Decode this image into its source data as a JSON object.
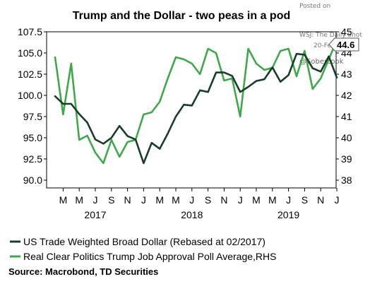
{
  "chart_data": {
    "type": "line",
    "title": "Trump and the Dollar - two peas in a pod",
    "x_tick_labels": [
      "M",
      "M",
      "J",
      "S",
      "N",
      "J",
      "M",
      "M",
      "J",
      "S",
      "N",
      "J",
      "M",
      "M",
      "J",
      "S",
      "N",
      "J"
    ],
    "year_labels": [
      "2017",
      "2018",
      "2019"
    ],
    "left_ticks": [
      "107.5",
      "105.0",
      "102.5",
      "100.0",
      "97.5",
      "95.0",
      "92.5",
      "90.0"
    ],
    "right_ticks": [
      "45",
      "44",
      "43",
      "42",
      "41",
      "40",
      "39",
      "38"
    ],
    "ylim_left": [
      90.0,
      107.5
    ],
    "ylim_right": [
      38,
      45
    ],
    "series": [
      {
        "name": "US Trade Weighted Broad Dollar (Rebased at 02/2017)",
        "axis": "left",
        "color": "#1a3d2b",
        "x": [
          "2017-02",
          "2017-03",
          "2017-04",
          "2017-05",
          "2017-06",
          "2017-07",
          "2017-08",
          "2017-09",
          "2017-10",
          "2017-11",
          "2017-12",
          "2018-01",
          "2018-02",
          "2018-03",
          "2018-04",
          "2018-05",
          "2018-06",
          "2018-07",
          "2018-08",
          "2018-09",
          "2018-10",
          "2018-11",
          "2018-12",
          "2019-01",
          "2019-02",
          "2019-03",
          "2019-04",
          "2019-05",
          "2019-06",
          "2019-07",
          "2019-08",
          "2019-09",
          "2019-10",
          "2019-11",
          "2019-12",
          "2020-01"
        ],
        "values": [
          99.9,
          99.0,
          99.0,
          97.8,
          96.8,
          94.8,
          94.3,
          95.0,
          96.4,
          95.2,
          94.8,
          92.0,
          94.4,
          93.7,
          95.5,
          97.5,
          98.9,
          98.8,
          100.6,
          100.4,
          102.7,
          102.7,
          102.3,
          100.4,
          101.0,
          101.7,
          101.9,
          103.3,
          101.6,
          102.4,
          104.9,
          104.8,
          103.2,
          102.8,
          104.6,
          102.1
        ]
      },
      {
        "name": "Real Clear Politics Trump Job Approval Poll Average,RHS",
        "axis": "right",
        "color": "#3fa84a",
        "x": [
          "2017-02",
          "2017-03",
          "2017-04",
          "2017-05",
          "2017-06",
          "2017-07",
          "2017-08",
          "2017-09",
          "2017-10",
          "2017-11",
          "2017-12",
          "2018-01",
          "2018-02",
          "2018-03",
          "2018-04",
          "2018-05",
          "2018-06",
          "2018-07",
          "2018-08",
          "2018-09",
          "2018-10",
          "2018-11",
          "2018-12",
          "2019-01",
          "2019-02",
          "2019-03",
          "2019-04",
          "2019-05",
          "2019-06",
          "2019-07",
          "2019-08",
          "2019-09",
          "2019-10",
          "2019-11",
          "2019-12",
          "2020-01"
        ],
        "values": [
          43.8,
          41.1,
          43.5,
          39.9,
          40.1,
          39.3,
          38.8,
          39.9,
          39.1,
          39.8,
          39.9,
          41.1,
          41.2,
          41.7,
          42.8,
          43.8,
          43.7,
          43.5,
          43.0,
          44.2,
          44.0,
          42.7,
          42.8,
          41.0,
          44.2,
          43.5,
          43.2,
          43.3,
          44.1,
          44.2,
          42.9,
          44.1,
          42.3,
          42.8,
          43.7,
          44.6
        ]
      }
    ],
    "annotation": "44.6",
    "legend_position": "bottom",
    "grid": false
  },
  "source": "Source: Macrobond, TD Securities",
  "watermark": {
    "posted_on": "Posted on",
    "site": "WSJ: The Daily Shot",
    "date": "20-Feb-2020",
    "handle": "@SoberLook"
  }
}
